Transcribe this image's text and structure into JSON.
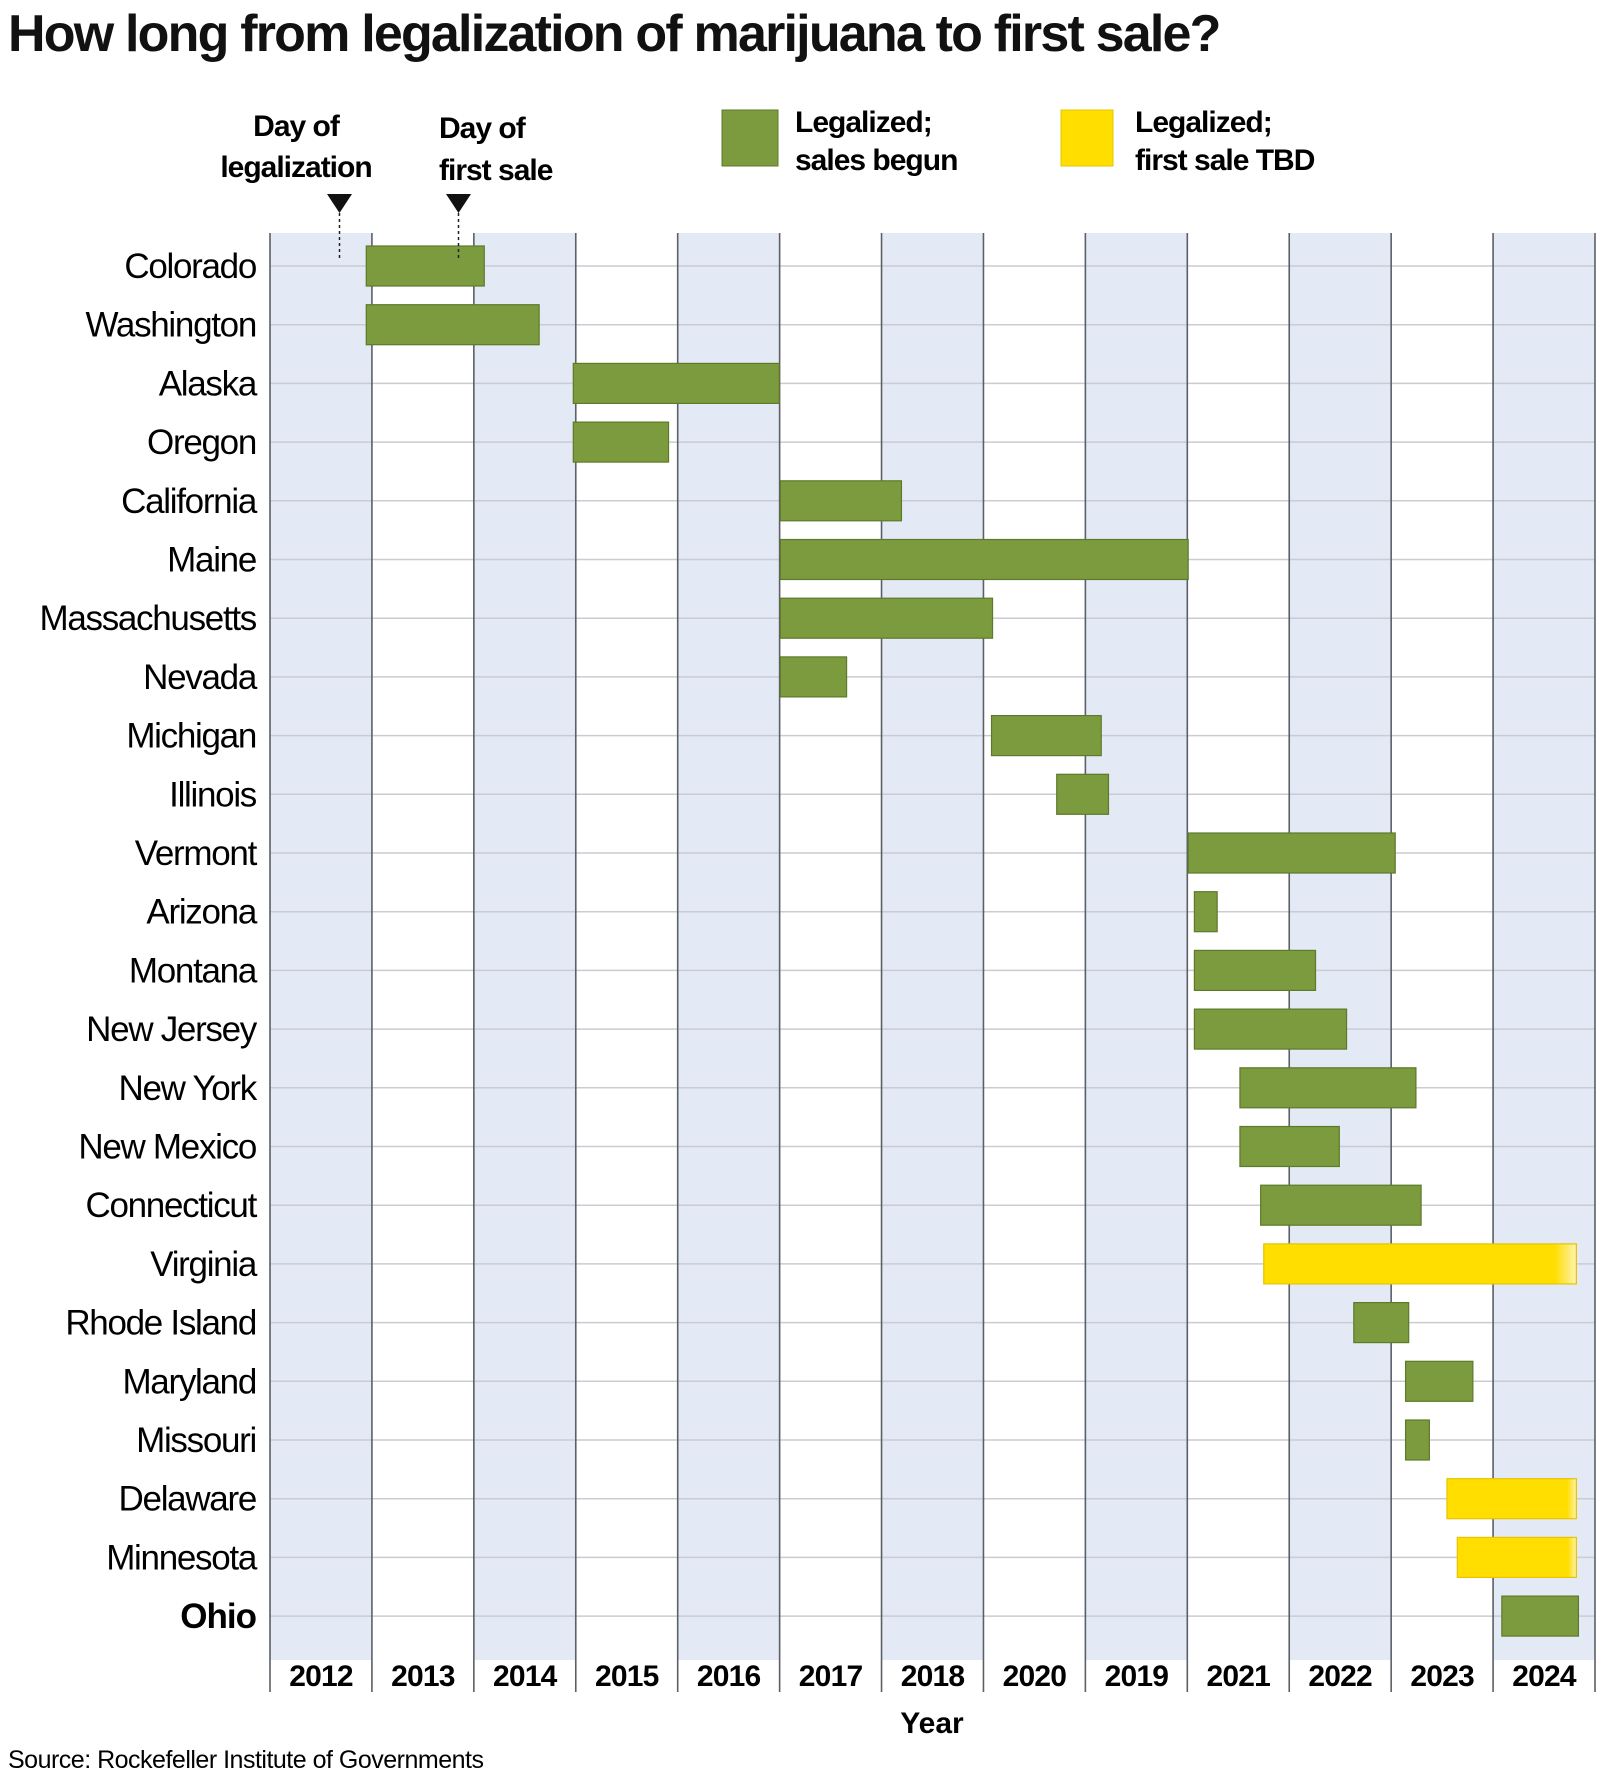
{
  "chart_data": {
    "type": "bar",
    "title": "How long from legalization of marijuana to first sale?",
    "xlabel": "Year",
    "ylabel": "",
    "x_tick_labels": [
      "2012",
      "2013",
      "2014",
      "2015",
      "2016",
      "2017",
      "2018",
      "2020",
      "2019",
      "2021",
      "2022",
      "2023",
      "2024"
    ],
    "xlim": [
      2012,
      2024.8
    ],
    "grid": true,
    "legend_position": "top-right",
    "annotations": {
      "start_marker": "Day of legalization",
      "end_marker": "Day of first sale"
    },
    "legend": [
      {
        "name": "Legalized; sales begun",
        "color": "#7c9a3e"
      },
      {
        "name": "Legalized; first sale TBD",
        "color": "#ffde00"
      }
    ],
    "source": "Source: Rockefeller Institute of Governments",
    "colors": {
      "sales_begun": "#7c9a3e",
      "tbd": "#ffde00",
      "band": "#e3e9f5"
    },
    "categories": [
      "Colorado",
      "Washington",
      "Alaska",
      "Oregon",
      "California",
      "Maine",
      "Massachusetts",
      "Nevada",
      "Michigan",
      "Illinois",
      "Vermont",
      "Arizona",
      "Montana",
      "New Jersey",
      "New York",
      "New Mexico",
      "Connecticut",
      "Virginia",
      "Rhode Island",
      "Maryland",
      "Missouri",
      "Delaware",
      "Minnesota",
      "Ohio"
    ],
    "bold_categories": [
      "Ohio"
    ],
    "series": [
      {
        "status": "sales_begun",
        "start": [
          2012.93,
          2012.93,
          2014.93,
          2014.93,
          2016.93,
          2016.93,
          2016.93,
          2016.93,
          2018.97,
          2019.6,
          2020.87,
          2020.93,
          2020.93,
          2020.93,
          2021.37,
          2021.37,
          2021.57,
          null,
          2022.47,
          2022.97,
          2022.97,
          null,
          null,
          2023.9
        ]
      },
      {
        "status": "sales_begun",
        "end": [
          2014.07,
          2014.6,
          2016.92,
          2015.85,
          2018.1,
          2020.87,
          2018.98,
          2017.57,
          2020.03,
          2020.1,
          2022.87,
          2021.15,
          2022.1,
          2022.4,
          2023.07,
          2022.33,
          2023.12,
          null,
          2023.0,
          2023.62,
          2023.2,
          null,
          null,
          2024.64
        ]
      },
      {
        "status": "tbd",
        "start": [
          null,
          null,
          null,
          null,
          null,
          null,
          null,
          null,
          null,
          null,
          null,
          null,
          null,
          null,
          null,
          null,
          null,
          2021.6,
          null,
          null,
          null,
          2023.37,
          2023.47,
          null
        ]
      },
      {
        "status": "tbd",
        "end": [
          null,
          null,
          null,
          null,
          null,
          null,
          null,
          null,
          null,
          null,
          null,
          null,
          null,
          null,
          null,
          null,
          null,
          2024.62,
          null,
          null,
          null,
          2024.62,
          2024.62,
          null
        ]
      }
    ]
  }
}
